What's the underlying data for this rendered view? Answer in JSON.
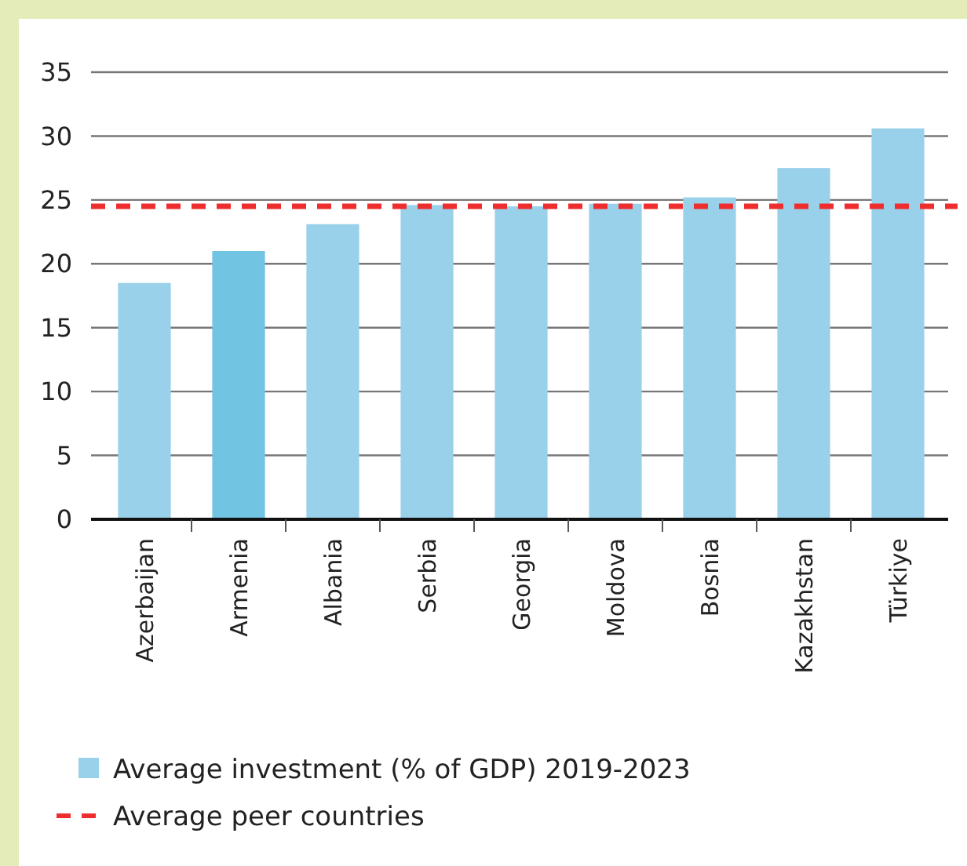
{
  "chart_data": {
    "type": "bar",
    "categories": [
      "Azerbaijan",
      "Armenia",
      "Albania",
      "Serbia",
      "Georgia",
      "Moldova",
      "Bosnia",
      "Kazakhstan",
      "Türkiye"
    ],
    "series": [
      {
        "name": "Average investment (% of GDP) 2019-2023",
        "color": "#9ad1ea",
        "colors": [
          "#9ad1ea",
          "#72c4e3",
          "#9ad1ea",
          "#9ad1ea",
          "#9ad1ea",
          "#9ad1ea",
          "#9ad1ea",
          "#9ad1ea",
          "#9ad1ea"
        ],
        "values": [
          18.5,
          21,
          23.1,
          24.6,
          24.5,
          24.7,
          25.2,
          27.5,
          30.6
        ]
      }
    ],
    "ref_lines": [
      {
        "axis": "y",
        "value": 24.5,
        "label": "Average peer countries",
        "color": "#ee2e2e",
        "line_style": "dashed"
      }
    ],
    "ylim": [
      0,
      35
    ],
    "yticks": [
      0,
      5,
      10,
      15,
      20,
      25,
      30,
      35
    ],
    "grid": "y",
    "legend": "bottom"
  }
}
